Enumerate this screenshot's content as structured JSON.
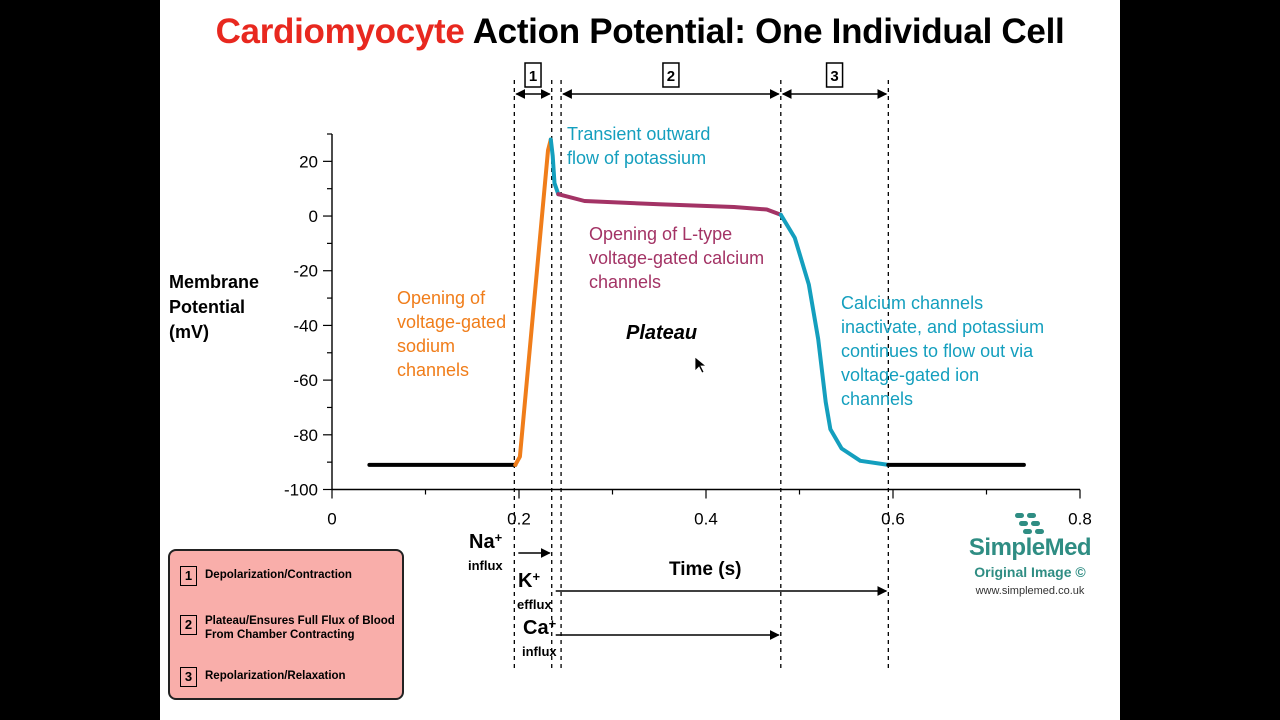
{
  "title": {
    "accent": "Cardiomyocyte",
    "rest": "Action Potential: One Individual Cell"
  },
  "colors": {
    "title_accent": "#e8281f",
    "depolarization": "#f07d1a",
    "potassium": "#149fbe",
    "calcium": "#a33365",
    "baseline": "#000000",
    "legend_bg": "#f9aeaa",
    "brand": "#2f8d83"
  },
  "phases": [
    {
      "number": "1",
      "t_start": 0.195,
      "t_end": 0.235
    },
    {
      "number": "2",
      "t_start": 0.245,
      "t_end": 0.48
    },
    {
      "number": "3",
      "t_start": 0.48,
      "t_end": 0.595
    }
  ],
  "chart_data": {
    "type": "line",
    "ylabel": "Membrane Potential (mV)",
    "xlabel": "Time (s)",
    "xlim": [
      0,
      0.8
    ],
    "ylim": [
      -100,
      30
    ],
    "x_ticks": [
      "0",
      "0.2",
      "0.4",
      "0.6",
      "0.8"
    ],
    "y_ticks": [
      "20",
      "0",
      "-20",
      "-40",
      "-60",
      "-80",
      "-100"
    ],
    "series": [
      {
        "segment": "resting",
        "color": "#000000",
        "points": [
          [
            0.04,
            -91
          ],
          [
            0.196,
            -91
          ]
        ]
      },
      {
        "segment": "depolarization",
        "color": "#f07d1a",
        "points": [
          [
            0.196,
            -91
          ],
          [
            0.201,
            -88
          ],
          [
            0.231,
            24
          ],
          [
            0.234,
            28
          ]
        ]
      },
      {
        "segment": "transient-outward",
        "color": "#149fbe",
        "points": [
          [
            0.234,
            28
          ],
          [
            0.236,
            22
          ],
          [
            0.238,
            12
          ],
          [
            0.242,
            8
          ]
        ]
      },
      {
        "segment": "plateau",
        "color": "#a33365",
        "points": [
          [
            0.242,
            8
          ],
          [
            0.27,
            5.5
          ],
          [
            0.35,
            4.3
          ],
          [
            0.43,
            3.3
          ],
          [
            0.465,
            2.4
          ],
          [
            0.48,
            0.5
          ]
        ]
      },
      {
        "segment": "repolarization",
        "color": "#149fbe",
        "points": [
          [
            0.48,
            0.5
          ],
          [
            0.495,
            -8
          ],
          [
            0.51,
            -25
          ],
          [
            0.52,
            -45
          ],
          [
            0.528,
            -68
          ],
          [
            0.533,
            -78
          ],
          [
            0.545,
            -85
          ],
          [
            0.565,
            -89.5
          ],
          [
            0.595,
            -91
          ]
        ]
      },
      {
        "segment": "resting-after",
        "color": "#000000",
        "points": [
          [
            0.595,
            -91
          ],
          [
            0.74,
            -91
          ]
        ]
      }
    ]
  },
  "annotations": {
    "potassium_transient": [
      "Transient outward",
      "flow of potassium"
    ],
    "calcium_plateau": [
      "Opening of L-type",
      "voltage-gated calcium",
      "channels"
    ],
    "sodium_open": [
      "Opening of",
      "voltage-gated",
      "sodium",
      "channels"
    ],
    "plateau": "Plateau",
    "repolarization": [
      "Calcium channels",
      "inactivate, and potassium",
      "continues to flow out via",
      "voltage-gated ion",
      "channels"
    ]
  },
  "ion_flows": [
    {
      "ion": "Na",
      "charge": "+",
      "label": "influx",
      "t_start": 0.195,
      "t_end": 0.235
    },
    {
      "ion": "K",
      "charge": "+",
      "label": "efflux",
      "t_start": 0.235,
      "t_end": 0.595
    },
    {
      "ion": "Ca",
      "charge": "+",
      "label": "influx",
      "t_start": 0.235,
      "t_end": 0.48
    }
  ],
  "legend": [
    {
      "number": "1",
      "lines": [
        "Depolarization/Contraction"
      ]
    },
    {
      "number": "2",
      "lines": [
        "Plateau/Ensures Full Flux of Blood",
        "From Chamber Contracting"
      ]
    },
    {
      "number": "3",
      "lines": [
        "Repolarization/Relaxation"
      ]
    }
  ],
  "brand": {
    "name": "SimpleMed",
    "subtitle": "Original Image ©",
    "url": "www.simplemed.co.uk"
  }
}
